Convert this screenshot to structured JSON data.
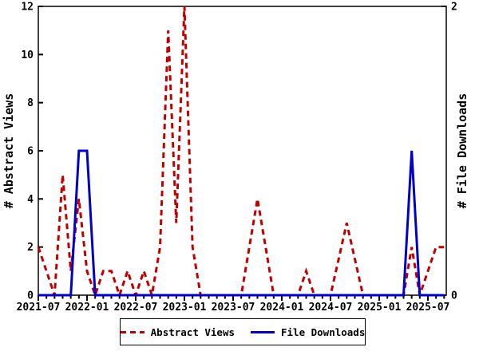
{
  "figure": {
    "background": "#ffffff",
    "axis_color": "#000000",
    "left_axis": {
      "label": "# Abstract Views",
      "ticks": [
        0,
        2,
        4,
        6,
        8,
        10,
        12
      ],
      "range": [
        0,
        12
      ]
    },
    "right_axis": {
      "label": "# File Downloads",
      "ticks": [
        0,
        2
      ],
      "range": [
        0,
        2
      ]
    },
    "x_axis": {
      "major_tick_labels": [
        "2021-07",
        "2022-01",
        "2022-07",
        "2023-01",
        "2023-07",
        "2024-01",
        "2024-07",
        "2025-01",
        "2025-07"
      ],
      "major_tick_every_months": 6,
      "minor_tick_every_months": 1
    }
  },
  "chart_data": {
    "type": "line",
    "title": "",
    "grid": false,
    "legend_position": "bottom-center",
    "left_ylim": [
      0,
      12
    ],
    "right_ylim": [
      0,
      2
    ],
    "x": [
      "2021-07",
      "2021-08",
      "2021-09",
      "2021-10",
      "2021-11",
      "2021-12",
      "2022-01",
      "2022-02",
      "2022-03",
      "2022-04",
      "2022-05",
      "2022-06",
      "2022-07",
      "2022-08",
      "2022-09",
      "2022-10",
      "2022-11",
      "2022-12",
      "2023-01",
      "2023-02",
      "2023-03",
      "2023-04",
      "2023-05",
      "2023-06",
      "2023-07",
      "2023-08",
      "2023-09",
      "2023-10",
      "2023-11",
      "2023-12",
      "2024-01",
      "2024-02",
      "2024-03",
      "2024-04",
      "2024-05",
      "2024-06",
      "2024-07",
      "2024-08",
      "2024-09",
      "2024-10",
      "2024-11",
      "2024-12",
      "2025-01",
      "2025-02",
      "2025-03",
      "2025-04",
      "2025-05",
      "2025-06",
      "2025-07",
      "2025-08",
      "2025-09"
    ],
    "series": [
      {
        "name": "Abstract Views",
        "yaxis": "left",
        "color": "#c00000",
        "line_style": "dashed",
        "values": [
          2,
          1,
          0,
          5,
          1,
          4,
          1,
          0,
          1,
          1,
          0,
          1,
          0,
          1,
          0,
          2,
          11,
          3,
          12,
          2,
          0,
          0,
          0,
          0,
          0,
          0,
          2,
          4,
          2,
          0,
          0,
          0,
          0,
          1,
          0,
          0,
          0,
          1.5,
          3,
          1.5,
          0,
          0,
          0,
          0,
          0,
          0,
          2,
          0,
          1,
          2,
          2
        ]
      },
      {
        "name": "File Downloads",
        "yaxis": "right",
        "color": "#0000cc",
        "line_style": "solid",
        "values": [
          0,
          0,
          0,
          0,
          0,
          1,
          1,
          0,
          0,
          0,
          0,
          0,
          0,
          0,
          0,
          0,
          0,
          0,
          0,
          0,
          0,
          0,
          0,
          0,
          0,
          0,
          0,
          0,
          0,
          0,
          0,
          0,
          0,
          0,
          0,
          0,
          0,
          0,
          0,
          0,
          0,
          0,
          0,
          0,
          0,
          0,
          1,
          0,
          0,
          0,
          0
        ]
      }
    ]
  }
}
